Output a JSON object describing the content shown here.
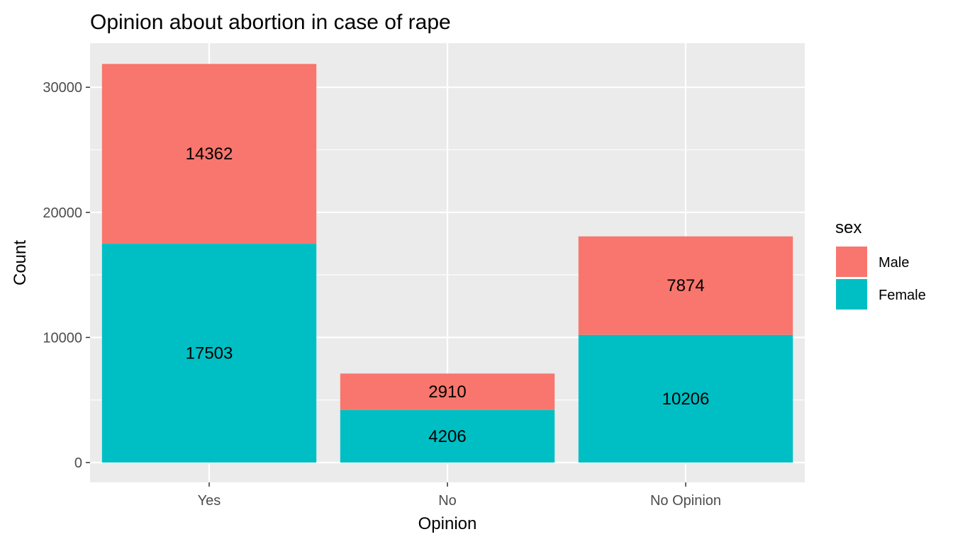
{
  "chart_data": {
    "type": "bar",
    "stacked": true,
    "title": "Opinion about abortion in case of rape",
    "xlabel": "Opinion",
    "ylabel": "Count",
    "categories": [
      "Yes",
      "No",
      "No Opinion"
    ],
    "series": [
      {
        "name": "Female",
        "values": [
          17503,
          4206,
          10206
        ],
        "color": "#00BFC4"
      },
      {
        "name": "Male",
        "values": [
          14362,
          2910,
          7874
        ],
        "color": "#F8766D"
      }
    ],
    "ylim": [
      0,
      33500
    ],
    "yticks": [
      0,
      10000,
      20000,
      30000
    ],
    "grid": true,
    "legend": {
      "title": "sex",
      "position": "right",
      "items": [
        {
          "label": "Male",
          "color": "#F8766D"
        },
        {
          "label": "Female",
          "color": "#00BFC4"
        }
      ]
    }
  }
}
